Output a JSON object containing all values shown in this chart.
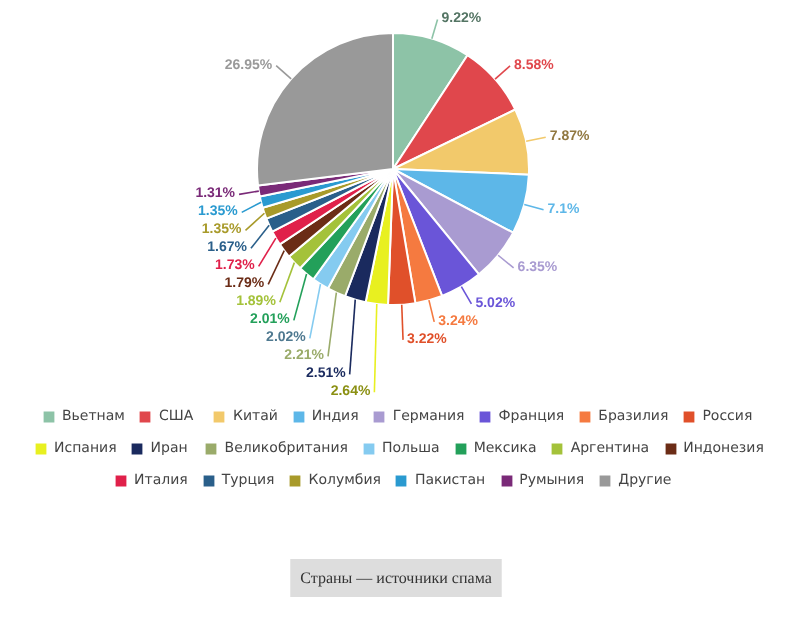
{
  "chart_data": {
    "type": "pie",
    "annotations": [
      "Страны — источники спама"
    ],
    "categories": [
      "Вьетнам",
      "США",
      "Китай",
      "Индия",
      "Германия",
      "Франция",
      "Бразилия",
      "Россия",
      "Испания",
      "Иран",
      "Великобритания",
      "Польша",
      "Мексика",
      "Аргентина",
      "Индонезия",
      "Италия",
      "Турция",
      "Колумбия",
      "Пакистан",
      "Румыния",
      "Другие"
    ],
    "values": [
      9.22,
      8.58,
      7.87,
      7.1,
      6.35,
      5.02,
      3.24,
      3.22,
      2.64,
      2.51,
      2.21,
      2.02,
      2.01,
      1.89,
      1.79,
      1.73,
      1.67,
      1.35,
      1.35,
      1.31,
      26.95
    ],
    "value_labels": [
      "9.22%",
      "8.58%",
      "7.87%",
      "7.1%",
      "6.35%",
      "5.02%",
      "3.24%",
      "3.22%",
      "2.64%",
      "2.51%",
      "2.21%",
      "2.02%",
      "2.01%",
      "1.89%",
      "1.79%",
      "1.73%",
      "1.67%",
      "1.35%",
      "1.35%",
      "1.31%",
      "26.95%"
    ],
    "colors": [
      "#8dc3a7",
      "#e0474c",
      "#f2c96b",
      "#5db7e8",
      "#a99bd1",
      "#6a55d8",
      "#f57a40",
      "#e0502a",
      "#e8f020",
      "#1a2a5e",
      "#9aab6a",
      "#85cbf0",
      "#23a05a",
      "#a4c23a",
      "#6b2c16",
      "#e0204a",
      "#2a5f8a",
      "#a89a2a",
      "#2a9ad0",
      "#7a2a78",
      "#999999"
    ],
    "legend": "bottom"
  }
}
